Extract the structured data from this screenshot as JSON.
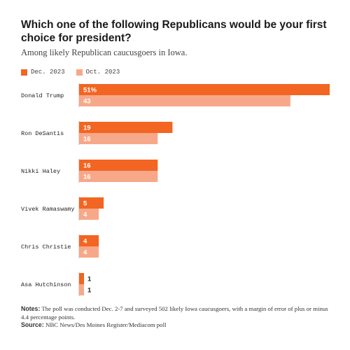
{
  "chart_data": {
    "type": "bar",
    "orientation": "horizontal",
    "title": "Which one of the following Republicans would be your first choice for president?",
    "subtitle": "Among likely Republican caucusgoers in Iowa.",
    "categories": [
      "Donald Trump",
      "Ron DeSantis",
      "Nikki Haley",
      "Vivek Ramaswamy",
      "Chris Christie",
      "Asa Hutchinson"
    ],
    "series": [
      {
        "name": "Dec. 2023",
        "values": [
          51,
          19,
          16,
          5,
          4,
          1
        ],
        "labels": [
          "51%",
          "19",
          "16",
          "5",
          "4",
          "1"
        ],
        "color": "#f26522"
      },
      {
        "name": "Oct. 2023",
        "values": [
          43,
          16,
          16,
          4,
          4,
          1
        ],
        "labels": [
          "43",
          "16",
          "16",
          "4",
          "4",
          "1"
        ],
        "color": "#f7a889"
      }
    ],
    "xlim": [
      0,
      51
    ],
    "legend_position": "top-left",
    "grid": false
  },
  "notes": {
    "notes_label": "Notes:",
    "notes_text": " The poll was conducted Dec. 2-7 and surveyed 502 likely Iowa caucusgoers, with a margin of error of plus or minus 4.4 percentage points.",
    "source_label": "Source:",
    "source_text": " NBC News/Des Moines Register/Mediacom poll"
  },
  "colors": {
    "dec": "#f26522",
    "oct": "#f7a889",
    "baseline": "#bbbbbb"
  }
}
